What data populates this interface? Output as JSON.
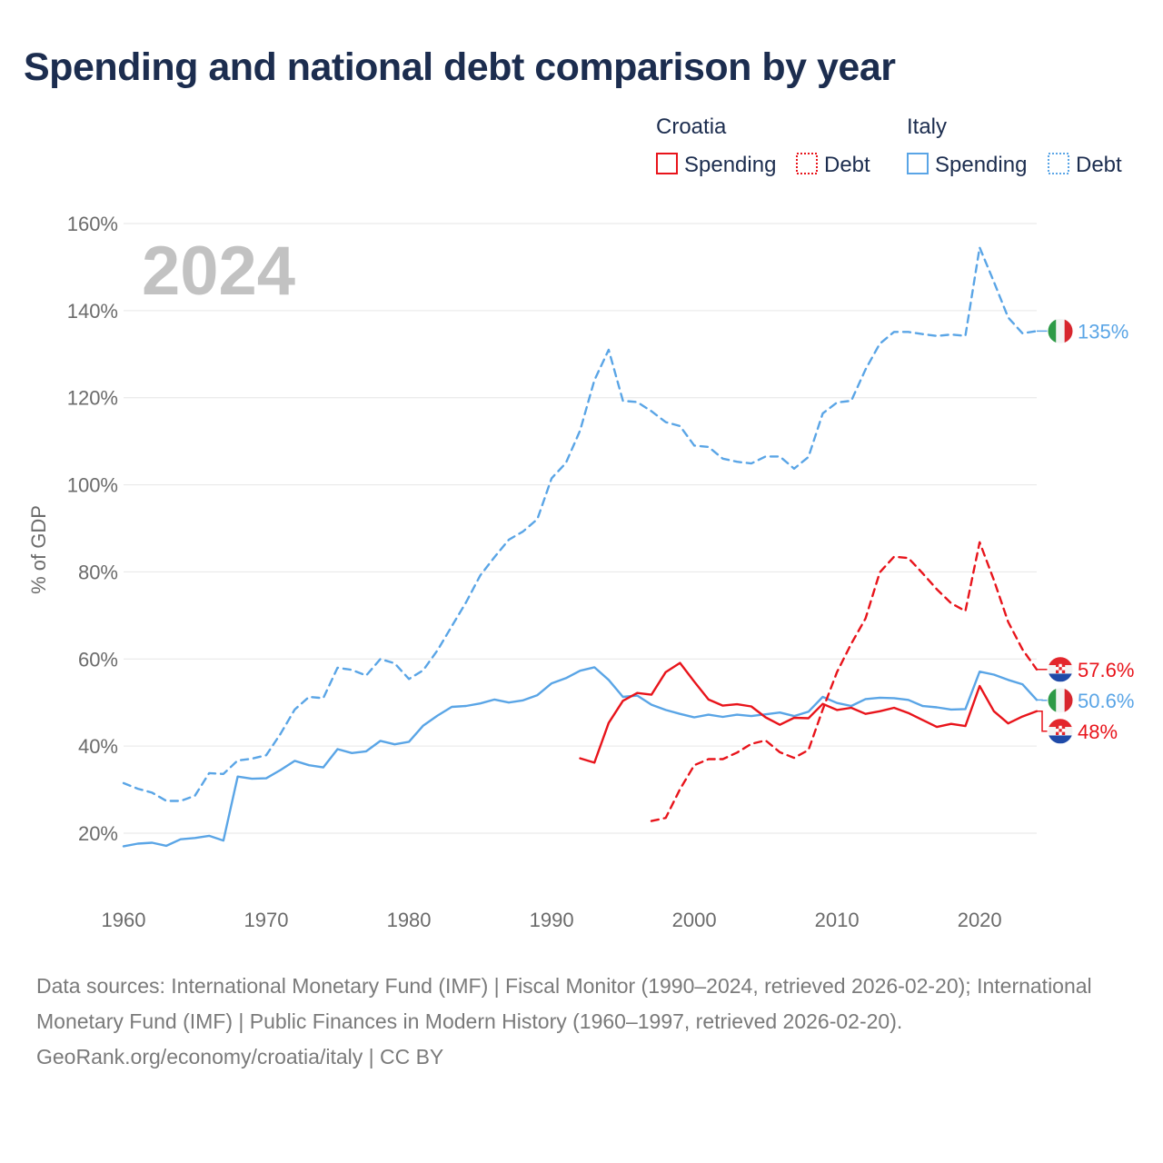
{
  "title": "Spending and national debt comparison by year",
  "legend": {
    "croatia": "Croatia",
    "italy": "Italy",
    "spending": "Spending",
    "debt": "Debt"
  },
  "colors": {
    "croatia": "#e8141b",
    "italy": "#5aa5e6",
    "grid": "#e6e6e6"
  },
  "chart_data": {
    "type": "line",
    "title": "Spending and national debt comparison by year",
    "year_label": "2024",
    "ylabel": "% of GDP",
    "xlim": [
      1960,
      2024
    ],
    "ylim": [
      14,
      162
    ],
    "x_ticks": [
      1960,
      1970,
      1980,
      1990,
      2000,
      2010,
      2020
    ],
    "y_ticks": [
      20,
      40,
      60,
      80,
      100,
      120,
      140,
      160
    ],
    "y_tick_labels": [
      "20%",
      "40%",
      "60%",
      "80%",
      "100%",
      "120%",
      "140%",
      "160%"
    ],
    "series": [
      {
        "name": "Italy Debt",
        "country": "italy",
        "kind": "debt",
        "end_label": "135%",
        "x": [
          1960,
          1961,
          1962,
          1963,
          1964,
          1965,
          1966,
          1967,
          1968,
          1969,
          1970,
          1971,
          1972,
          1973,
          1974,
          1975,
          1976,
          1977,
          1978,
          1979,
          1980,
          1981,
          1982,
          1983,
          1984,
          1985,
          1986,
          1987,
          1988,
          1989,
          1990,
          1991,
          1992,
          1993,
          1994,
          1995,
          1996,
          1997,
          1998,
          1999,
          2000,
          2001,
          2002,
          2003,
          2004,
          2005,
          2006,
          2007,
          2008,
          2009,
          2010,
          2011,
          2012,
          2013,
          2014,
          2015,
          2016,
          2017,
          2018,
          2019,
          2020,
          2021,
          2022,
          2023,
          2024
        ],
        "values": [
          31.5,
          30.2,
          29.3,
          27.4,
          27.4,
          28.6,
          33.8,
          33.6,
          36.7,
          37.1,
          37.9,
          42.8,
          48.4,
          51.3,
          51.0,
          58.0,
          57.5,
          56.2,
          60.0,
          59.0,
          55.4,
          57.4,
          62.0,
          67.5,
          73.0,
          79.2,
          83.4,
          87.4,
          89.3,
          92.1,
          101.5,
          105.0,
          112.5,
          124.0,
          131.0,
          119.3,
          119.0,
          116.9,
          114.4,
          113.5,
          109.0,
          108.7,
          106.0,
          105.3,
          104.9,
          106.5,
          106.5,
          103.7,
          106.4,
          116.4,
          118.9,
          119.3,
          126.5,
          132.4,
          135.1,
          135.1,
          134.6,
          134.2,
          134.5,
          134.2,
          154.5,
          146.6,
          138.4,
          134.8,
          135.3
        ]
      },
      {
        "name": "Italy Spending",
        "country": "italy",
        "kind": "spending",
        "end_label": "50.6%",
        "x": [
          1960,
          1961,
          1962,
          1963,
          1964,
          1965,
          1966,
          1967,
          1968,
          1969,
          1970,
          1971,
          1972,
          1973,
          1974,
          1975,
          1976,
          1977,
          1978,
          1979,
          1980,
          1981,
          1982,
          1983,
          1984,
          1985,
          1986,
          1987,
          1988,
          1989,
          1990,
          1991,
          1992,
          1993,
          1994,
          1995,
          1996,
          1997,
          1998,
          1999,
          2000,
          2001,
          2002,
          2003,
          2004,
          2005,
          2006,
          2007,
          2008,
          2009,
          2010,
          2011,
          2012,
          2013,
          2014,
          2015,
          2016,
          2017,
          2018,
          2019,
          2020,
          2021,
          2022,
          2023,
          2024
        ],
        "values": [
          17.0,
          17.6,
          17.8,
          17.1,
          18.6,
          18.9,
          19.4,
          18.3,
          33.0,
          32.5,
          32.6,
          34.5,
          36.6,
          35.6,
          35.1,
          39.3,
          38.4,
          38.8,
          41.2,
          40.4,
          41.0,
          44.7,
          47.0,
          49.0,
          49.2,
          49.8,
          50.7,
          50.0,
          50.5,
          51.7,
          54.4,
          55.6,
          57.3,
          58.1,
          55.2,
          51.3,
          51.6,
          49.5,
          48.3,
          47.4,
          46.6,
          47.2,
          46.7,
          47.2,
          46.9,
          47.3,
          47.7,
          46.9,
          47.9,
          51.3,
          49.9,
          49.2,
          50.8,
          51.1,
          51.0,
          50.6,
          49.2,
          48.9,
          48.4,
          48.5,
          57.1,
          56.4,
          55.2,
          54.2,
          50.6
        ]
      },
      {
        "name": "Croatia Debt",
        "country": "croatia",
        "kind": "debt",
        "end_label": "57.6%",
        "x": [
          1997,
          1998,
          1999,
          2000,
          2001,
          2002,
          2003,
          2004,
          2005,
          2006,
          2007,
          2008,
          2009,
          2010,
          2011,
          2012,
          2013,
          2014,
          2015,
          2016,
          2017,
          2018,
          2019,
          2020,
          2021,
          2022,
          2023,
          2024
        ],
        "values": [
          22.8,
          23.5,
          30.1,
          35.6,
          37.0,
          37.0,
          38.5,
          40.5,
          41.3,
          38.6,
          37.3,
          39.1,
          48.4,
          57.0,
          63.5,
          69.3,
          79.9,
          83.5,
          83.2,
          79.7,
          76.0,
          72.8,
          71.0,
          86.8,
          78.1,
          68.5,
          62.2,
          57.6
        ]
      },
      {
        "name": "Croatia Spending",
        "country": "croatia",
        "kind": "spending",
        "end_label": "48%",
        "x": [
          1992,
          1993,
          1994,
          1995,
          1996,
          1997,
          1998,
          1999,
          2000,
          2001,
          2002,
          2003,
          2004,
          2005,
          2006,
          2007,
          2008,
          2009,
          2010,
          2011,
          2012,
          2013,
          2014,
          2015,
          2016,
          2017,
          2018,
          2019,
          2020,
          2021,
          2022,
          2023,
          2024
        ],
        "values": [
          37.2,
          36.2,
          45.3,
          50.4,
          52.2,
          51.8,
          57.0,
          59.1,
          54.8,
          50.7,
          49.3,
          49.6,
          49.1,
          46.6,
          44.9,
          46.5,
          46.4,
          49.7,
          48.3,
          48.8,
          47.4,
          48.0,
          48.8,
          47.6,
          46.0,
          44.4,
          45.1,
          44.6,
          53.8,
          48.0,
          45.2,
          46.8,
          48.0
        ]
      }
    ]
  },
  "footer": {
    "sources": "Data sources: International Monetary Fund (IMF) | Fiscal Monitor (1990–2024, retrieved 2026-02-20); International Monetary Fund (IMF) | Public Finances in Modern History (1960–1997, retrieved 2026-02-20).",
    "credit": "GeoRank.org/economy/croatia/italy | CC BY"
  }
}
